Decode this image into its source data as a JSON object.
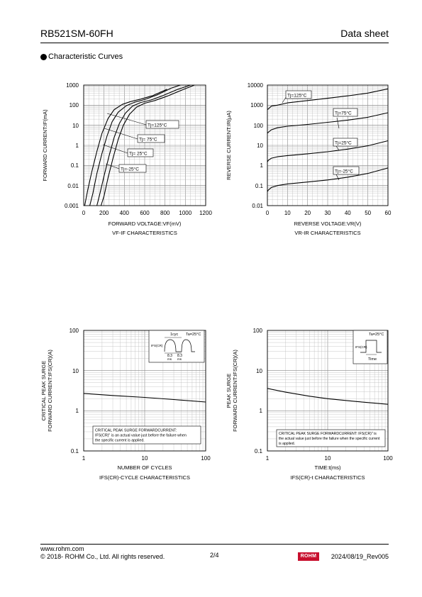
{
  "header": {
    "part_number": "RB521SM-60FH",
    "doc_type": "Data sheet"
  },
  "section": {
    "title": "Characteristic Curves"
  },
  "footer": {
    "url": "www.rohm.com",
    "copyright": "© 2018- ROHM Co., Ltd. All rights reserved.",
    "page": "2/4",
    "logo_text": "ROHM",
    "revision": "2024/08/19_Rev005"
  },
  "chart_data": [
    {
      "type": "line",
      "title": "VF-IF CHARACTERISTICS",
      "xlabel": "FORWARD VOLTAGE:VF(mV)",
      "ylabel": "FORWARD CURRENT:IF(mA)",
      "x_ticks": [
        "0",
        "200",
        "400",
        "600",
        "800",
        "1000",
        "1200"
      ],
      "y_ticks": [
        "1000",
        "100",
        "10",
        "1",
        "0.1",
        "0.01",
        "0.001"
      ],
      "xlim": [
        0,
        1200
      ],
      "ylim": [
        0.001,
        1000
      ],
      "y_scale": "log",
      "grid": true,
      "series": [
        {
          "name": "Tj=125°C",
          "x": [
            10,
            40,
            80,
            130,
            180,
            240,
            300,
            380,
            460,
            560,
            680,
            820
          ],
          "y": [
            0.001,
            0.006,
            0.05,
            0.5,
            4,
            22,
            60,
            110,
            150,
            200,
            300,
            620
          ]
        },
        {
          "name": "Tj= 75°C",
          "x": [
            60,
            90,
            130,
            180,
            230,
            280,
            340,
            420,
            500,
            600,
            720,
            860,
            950
          ],
          "y": [
            0.001,
            0.004,
            0.04,
            0.4,
            3,
            15,
            45,
            95,
            140,
            190,
            320,
            700,
            1000
          ]
        },
        {
          "name": "Tj= 25°C",
          "x": [
            130,
            160,
            200,
            250,
            300,
            350,
            410,
            480,
            560,
            660,
            780,
            920,
            1050
          ],
          "y": [
            0.001,
            0.004,
            0.03,
            0.3,
            2.5,
            12,
            40,
            90,
            135,
            180,
            300,
            600,
            1000
          ]
        },
        {
          "name": "Tj=-25°C",
          "x": [
            170,
            200,
            240,
            290,
            340,
            390,
            450,
            520,
            600,
            700,
            820,
            960,
            1090
          ],
          "y": [
            0.001,
            0.003,
            0.025,
            0.25,
            2,
            10,
            35,
            80,
            125,
            170,
            280,
            550,
            1000
          ]
        }
      ]
    },
    {
      "type": "line",
      "title": "VR-IR CHARACTERISTICS",
      "xlabel": "REVERSE VOLTAGE:VR(V)",
      "ylabel": "REVERSE CURRENT:IR(μA)",
      "x_ticks": [
        "0",
        "10",
        "20",
        "30",
        "40",
        "50",
        "60"
      ],
      "y_ticks": [
        "10000",
        "1000",
        "100",
        "10",
        "1",
        "0.1",
        "0.01"
      ],
      "xlim": [
        0,
        60
      ],
      "ylim": [
        0.01,
        10000
      ],
      "y_scale": "log",
      "grid": true,
      "series": [
        {
          "name": "Tj=125°C",
          "x": [
            0,
            0.5,
            2,
            5,
            10,
            20,
            30,
            40,
            50,
            60
          ],
          "y": [
            600,
            650,
            900,
            1000,
            1300,
            1700,
            2200,
            2900,
            4000,
            6500
          ]
        },
        {
          "name": "Tj=75°C",
          "x": [
            0,
            0.5,
            2,
            5,
            10,
            20,
            30,
            40,
            50,
            60
          ],
          "y": [
            40,
            45,
            60,
            75,
            90,
            110,
            140,
            180,
            250,
            420
          ]
        },
        {
          "name": "Tj=25°C",
          "x": [
            0,
            0.5,
            2,
            5,
            10,
            20,
            30,
            40,
            50,
            60
          ],
          "y": [
            1.5,
            1.8,
            2.3,
            2.7,
            3.1,
            3.8,
            4.8,
            6.5,
            9.5,
            17
          ]
        },
        {
          "name": "Tj=-25°C",
          "x": [
            0,
            0.5,
            2,
            5,
            10,
            20,
            30,
            40,
            50,
            60
          ],
          "y": [
            0.05,
            0.06,
            0.08,
            0.1,
            0.12,
            0.15,
            0.19,
            0.26,
            0.4,
            0.75
          ]
        }
      ]
    },
    {
      "type": "line",
      "title": "IFS(CR)-CYCLE CHARACTERISTICS",
      "xlabel": "NUMBER OF CYCLES",
      "ylabel_lines": [
        "CRITICAL PEAK SURGE",
        "FORWARD CURRENT:IFS(CR)(A)"
      ],
      "x_ticks": [
        "1",
        "10",
        "100"
      ],
      "y_ticks": [
        "100",
        "10",
        "1",
        "0.1"
      ],
      "xlim": [
        1,
        100
      ],
      "ylim": [
        0.1,
        100
      ],
      "x_scale": "log",
      "y_scale": "log",
      "grid": true,
      "series": [
        {
          "x": [
            1,
            3,
            10,
            30,
            100
          ],
          "y": [
            2.7,
            2.4,
            2.15,
            1.9,
            1.65
          ]
        }
      ],
      "inset": {
        "label_cyc": "1cyc",
        "label_ta": "Ta=25°C",
        "label_ifs": "IFS(CR)",
        "label_t1": "8.3",
        "label_t1u": "ms",
        "label_t2": "8.3",
        "label_t2u": "ms"
      },
      "note": [
        "CRITICAL PEAK SURGE FORWARDCURRENT:",
        "IFS(CR)\" is an actual value just before the failure when",
        "the specific current is applied."
      ]
    },
    {
      "type": "line",
      "title": "IFS(CR)-t CHARACTERISTICS",
      "xlabel": "TIME:t(ms)",
      "ylabel_lines": [
        "PEAK SURGE",
        "FORWARD CURRENT:IFS(CR)(A)"
      ],
      "x_ticks": [
        "1",
        "10",
        "100"
      ],
      "y_ticks": [
        "100",
        "10",
        "1",
        "0.1"
      ],
      "xlim": [
        1,
        100
      ],
      "ylim": [
        0.1,
        100
      ],
      "x_scale": "log",
      "y_scale": "log",
      "grid": true,
      "series": [
        {
          "x": [
            1,
            2,
            5,
            10,
            30,
            100
          ],
          "y": [
            3.6,
            2.9,
            2.3,
            2.0,
            1.7,
            1.45
          ]
        }
      ],
      "inset": {
        "label_ta": "Ta=25°C",
        "label_ifs": "IFS(CR)",
        "label_time": "Time"
      },
      "note": [
        "CRITICAL PEAK SURGE FORWARDCURRENT: IFS(CR)\" is",
        "the actual value just before the failure when the specific current",
        "is applied."
      ]
    }
  ]
}
